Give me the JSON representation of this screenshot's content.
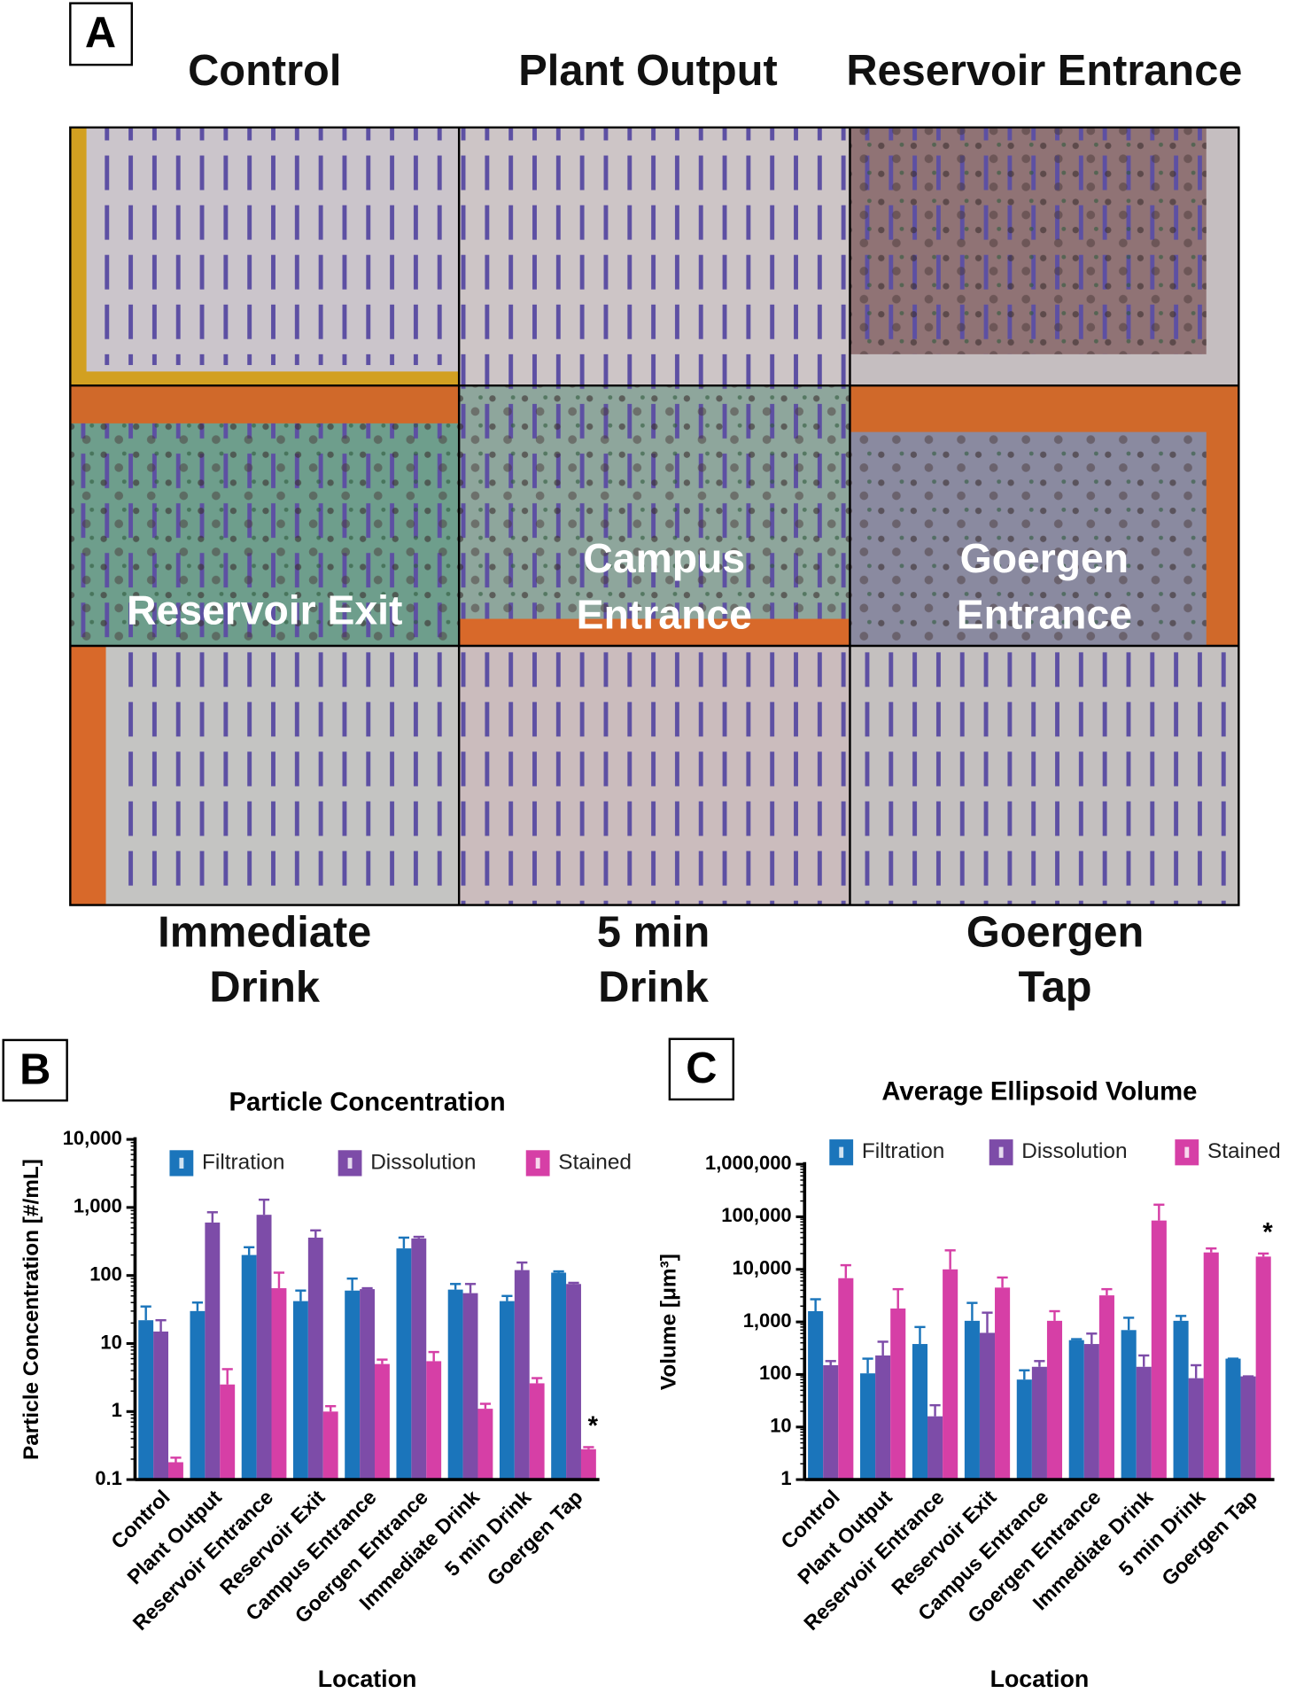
{
  "panel_a": {
    "label": "A",
    "top_labels": [
      "Control",
      "Plant Output",
      "Reservoir Entrance"
    ],
    "overlay_labels": [
      [
        "Reservoir Exit"
      ],
      [
        "Campus",
        "Entrance"
      ],
      [
        "Goergen",
        "Entrance"
      ]
    ],
    "bottom_labels": [
      [
        "Immediate",
        "Drink"
      ],
      [
        "5 min",
        "Drink"
      ],
      [
        "Goergen",
        "Tap"
      ]
    ]
  },
  "chart_data": [
    {
      "type": "bar",
      "panel": "B",
      "title": "Particle Concentration",
      "x_label": "Location",
      "y_label": "Particle Concentration [#/mL]",
      "categories": [
        "Control",
        "Plant Output",
        "Reservoir Entrance",
        "Reservoir Exit",
        "Campus Entrance",
        "Goergen Entrance",
        "Immediate Drink",
        "5 min Drink",
        "Goergen Tap"
      ],
      "series": [
        {
          "name": "Filtration",
          "color": "#1b75bb",
          "values": [
            22,
            30,
            200,
            42,
            60,
            250,
            62,
            42,
            110
          ],
          "errors": [
            13,
            10,
            60,
            18,
            30,
            110,
            13,
            8,
            5
          ]
        },
        {
          "name": "Dissolution",
          "color": "#7d4ca8",
          "values": [
            15,
            600,
            780,
            360,
            63,
            350,
            55,
            120,
            75
          ],
          "errors": [
            7,
            250,
            520,
            100,
            2,
            20,
            20,
            35,
            3
          ]
        },
        {
          "name": "Stained",
          "color": "#d63fa6",
          "values": [
            0.18,
            2.5,
            65,
            1.0,
            5,
            5.5,
            1.1,
            2.6,
            0.28
          ],
          "errors": [
            0.03,
            1.7,
            45,
            0.2,
            0.8,
            2,
            0.2,
            0.5,
            0.02
          ]
        }
      ],
      "annotation": {
        "text": "*",
        "category": "Goergen Tap",
        "series": "Stained"
      },
      "log_scale": true,
      "ylim": [
        0.1,
        10000
      ],
      "yticks": [
        0.1,
        1,
        10,
        100,
        {
          "value": 1000,
          "label": "1,000"
        },
        {
          "value": 10000,
          "label": "10,000"
        }
      ],
      "legend": "top"
    },
    {
      "type": "bar",
      "panel": "C",
      "title": "Average Ellipsoid Volume",
      "x_label": "Location",
      "y_label": "Volume [μm³]",
      "categories": [
        "Control",
        "Plant Output",
        "Reservoir Entrance",
        "Reservoir Exit",
        "Campus Entrance",
        "Goergen Entrance",
        "Immediate Drink",
        "5 min Drink",
        "Goergen Tap"
      ],
      "series": [
        {
          "name": "Filtration",
          "color": "#1b75bb",
          "values": [
            1600,
            105,
            380,
            1050,
            80,
            450,
            700,
            1050,
            200
          ],
          "errors": [
            1100,
            95,
            420,
            1250,
            40,
            20,
            500,
            250,
            0
          ]
        },
        {
          "name": "Dissolution",
          "color": "#7d4ca8",
          "values": [
            150,
            230,
            16,
            620,
            140,
            380,
            140,
            85,
            92
          ],
          "errors": [
            30,
            190,
            10,
            880,
            40,
            220,
            90,
            65,
            0
          ]
        },
        {
          "name": "Stained",
          "color": "#d63fa6",
          "values": [
            6800,
            1800,
            10000,
            4500,
            1050,
            3200,
            85000,
            21000,
            17500
          ],
          "errors": [
            5200,
            2400,
            13000,
            2500,
            550,
            1000,
            85000,
            4000,
            2500
          ]
        }
      ],
      "annotation": {
        "text": "*",
        "category": "Goergen Tap",
        "series": "Stained"
      },
      "log_scale": true,
      "ylim": [
        1,
        1000000
      ],
      "yticks": [
        1,
        10,
        100,
        {
          "value": 1000,
          "label": "1,000"
        },
        {
          "value": 10000,
          "label": "10,000"
        },
        {
          "value": 100000,
          "label": "100,000"
        },
        {
          "value": 1000000,
          "label": "1,000,000"
        }
      ],
      "legend": "top"
    }
  ]
}
